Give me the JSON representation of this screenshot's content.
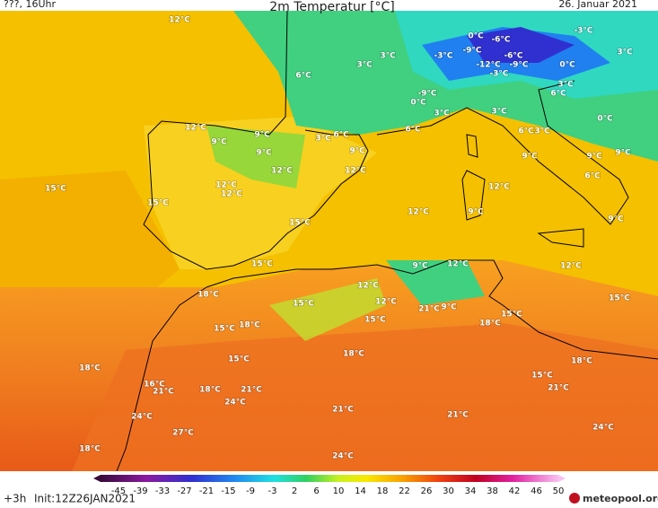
{
  "header": {
    "run": "???, 16Uhr",
    "title": "2m Temperatur [°C]",
    "date": "26. Januar 2021"
  },
  "map": {
    "labels": [
      "12°C",
      "6°C",
      "3°C",
      "3°C",
      "0°C",
      "-6°C",
      "-3°C",
      "-3°C",
      "-9°C",
      "-6°C",
      "-12°C",
      "-9°C",
      "0°C",
      "3°C",
      "-3°C",
      "-9°C",
      "0°C",
      "3°C",
      "3°C",
      "3°C",
      "6°C",
      "0°C",
      "12°C",
      "9°C",
      "9°C",
      "3°C",
      "6°C",
      "6°C",
      "6°C",
      "3°C",
      "9°C",
      "9°C",
      "9°C",
      "9°C",
      "9°C",
      "12°C",
      "12°C",
      "6°C",
      "15°C",
      "12°C",
      "12°C",
      "12°C",
      "15°C",
      "12°C",
      "9°C",
      "9°C",
      "15°C",
      "15°C",
      "9°C",
      "12°C",
      "12°C",
      "12°C",
      "18°C",
      "15°C",
      "12°C",
      "21°C",
      "9°C",
      "15°C",
      "15°C",
      "15°C",
      "18°C",
      "18°C",
      "15°C",
      "15°C",
      "18°C",
      "18°C",
      "18°C",
      "15°C",
      "16°C",
      "21°C",
      "18°C",
      "21°C",
      "21°C",
      "24°C",
      "21°C",
      "21°C",
      "24°C",
      "24°C",
      "27°C",
      "18°C",
      "24°C"
    ]
  },
  "legend": {
    "ticks": [
      -45,
      -39,
      -33,
      -27,
      -21,
      -15,
      -9,
      -3,
      2,
      6,
      10,
      14,
      18,
      22,
      26,
      30,
      34,
      38,
      42,
      46,
      50
    ]
  },
  "footer": {
    "lead": "+3h",
    "init": "Init:12Z26JAN2021",
    "logo": "meteopool.org"
  }
}
